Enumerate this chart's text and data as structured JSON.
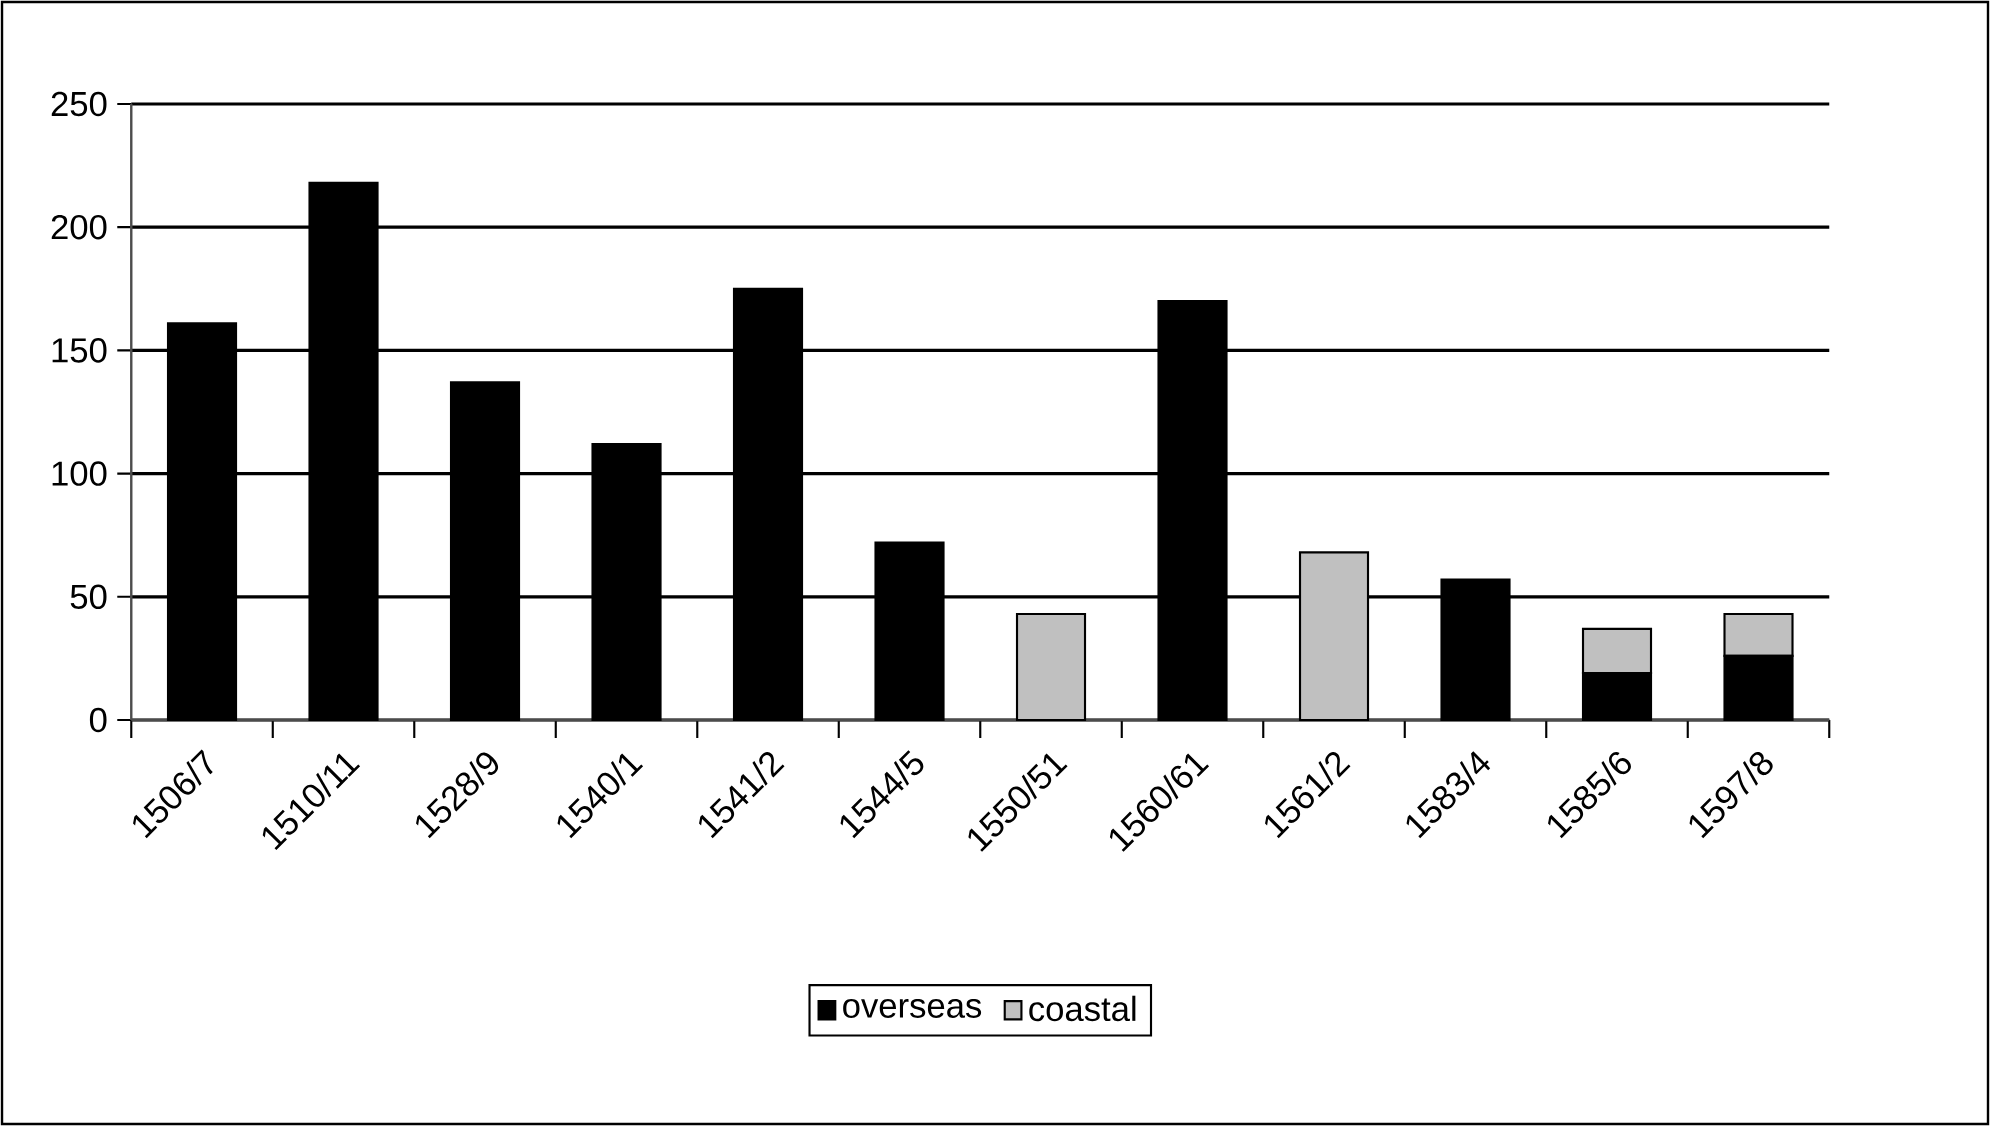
{
  "chart_data": {
    "type": "bar",
    "stacked": true,
    "categories": [
      "1506/7",
      "1510/11",
      "1528/9",
      "1540/1",
      "1541/2",
      "1544/5",
      "1550/51",
      "1560/61",
      "1561/2",
      "1583/4",
      "1585/6",
      "1597/8"
    ],
    "series": [
      {
        "name": "overseas",
        "color": "#000000",
        "values": [
          161,
          218,
          137,
          112,
          175,
          72,
          0,
          170,
          0,
          57,
          19,
          26
        ]
      },
      {
        "name": "coastal",
        "color": "#c0c0c0",
        "values": [
          0,
          0,
          0,
          0,
          0,
          0,
          43,
          0,
          68,
          0,
          18,
          17
        ]
      }
    ],
    "ylim": [
      0,
      250
    ],
    "yticks": [
      0,
      50,
      100,
      150,
      200,
      250
    ],
    "grid": "y",
    "legend": "bottom"
  }
}
